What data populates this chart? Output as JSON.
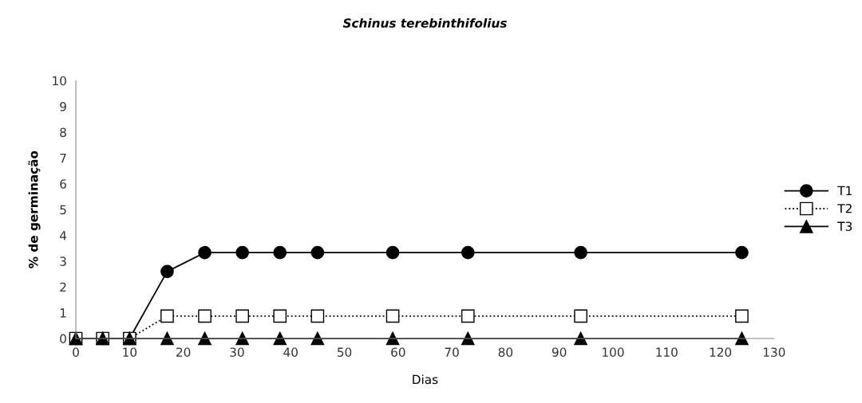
{
  "chart_data": {
    "type": "line",
    "title": "Schinus terebinthifolius",
    "xlabel": "Dias",
    "ylabel": "% de germinação",
    "x": [
      0,
      5,
      10,
      17,
      24,
      31,
      38,
      45,
      59,
      73,
      94,
      124
    ],
    "series": [
      {
        "name": "T1",
        "color": "#000000",
        "marker": "circle",
        "line_style": "solid",
        "values": [
          0,
          0,
          0,
          2.6,
          3.33,
          3.33,
          3.33,
          3.33,
          3.33,
          3.33,
          3.33,
          3.33
        ]
      },
      {
        "name": "T2",
        "color": "#000000",
        "marker": "square",
        "line_style": "dotted",
        "values": [
          0,
          0,
          0,
          0.87,
          0.87,
          0.87,
          0.87,
          0.87,
          0.87,
          0.87,
          0.87,
          0.87
        ]
      },
      {
        "name": "T3",
        "color": "#000000",
        "marker": "triangle",
        "line_style": "solid",
        "values": [
          0,
          0,
          0,
          0,
          0,
          0,
          0,
          0,
          0,
          0,
          0,
          0
        ]
      }
    ],
    "xlim": [
      0,
      130
    ],
    "xticks": [
      0,
      10,
      20,
      30,
      40,
      50,
      60,
      70,
      80,
      90,
      100,
      110,
      120,
      130
    ],
    "ylim": [
      0,
      10
    ],
    "yticks": [
      0,
      1,
      2,
      3,
      4,
      5,
      6,
      7,
      8,
      9,
      10
    ],
    "grid": false,
    "legend": "right"
  }
}
